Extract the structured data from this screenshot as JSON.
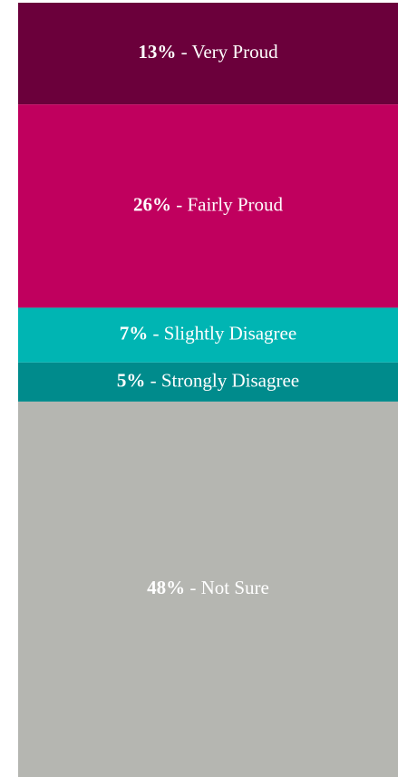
{
  "chart_data": {
    "type": "stacked_bar",
    "categories": [
      "Very Proud",
      "Fairly Proud",
      "Slightly Disagree",
      "Strongly Disagree",
      "Not Sure"
    ],
    "values": [
      13,
      26,
      7,
      5,
      48
    ],
    "value_labels": [
      "13%",
      "26%",
      "7%",
      "5%",
      "48%"
    ],
    "label_separator": " - ",
    "colors": [
      "#6b003b",
      "#c0005e",
      "#00b5b3",
      "#008b8c",
      "#b5b6b1"
    ]
  }
}
